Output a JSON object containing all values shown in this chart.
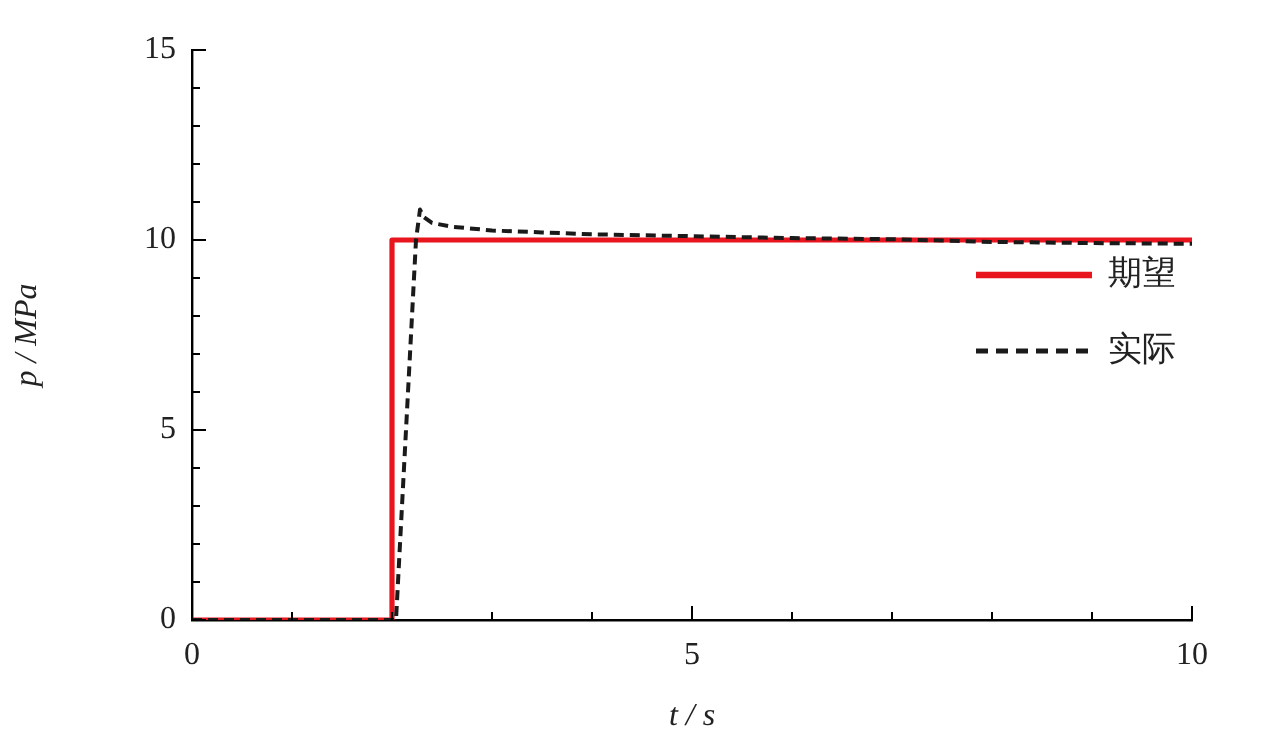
{
  "chart_data": {
    "type": "line",
    "xlabel": "t / s",
    "ylabel": "p / MPa",
    "xlim": [
      0,
      10
    ],
    "xticks": [
      0,
      {
        "value": 1,
        "label": null
      },
      {
        "value": 2,
        "label": null
      },
      {
        "value": 3,
        "label": null
      },
      {
        "value": 4,
        "label": null
      },
      5,
      {
        "value": 6,
        "label": null
      },
      {
        "value": 7,
        "label": null
      },
      {
        "value": 8,
        "label": null
      },
      {
        "value": 9,
        "label": null
      },
      10
    ],
    "ylim": [
      0,
      15
    ],
    "yticks": [
      0,
      {
        "value": 1,
        "label": null
      },
      {
        "value": 2,
        "label": null
      },
      {
        "value": 3,
        "label": null
      },
      {
        "value": 4,
        "label": null
      },
      5,
      {
        "value": 6,
        "label": null
      },
      {
        "value": 7,
        "label": null
      },
      {
        "value": 8,
        "label": null
      },
      {
        "value": 9,
        "label": null
      },
      10,
      {
        "value": 11,
        "label": null
      },
      {
        "value": 12,
        "label": null
      },
      {
        "value": 13,
        "label": null
      },
      {
        "value": 14,
        "label": null
      },
      15
    ],
    "grid": false,
    "legend": "right",
    "marker": "none",
    "series": [
      {
        "name": "期望",
        "color": "#e8141e",
        "line_style": "solid",
        "x": [
          0,
          2,
          2,
          10
        ],
        "values": [
          0,
          0,
          10,
          10
        ]
      },
      {
        "name": "实际",
        "color": "#1a1a1a",
        "line_style": "dashed",
        "x": [
          0,
          2.04,
          2.08,
          2.12,
          2.16,
          2.2,
          2.24,
          2.28,
          2.32,
          2.4,
          2.6,
          3,
          3.5,
          4,
          5,
          6,
          7,
          8,
          9,
          10
        ],
        "values": [
          0,
          0,
          2,
          4,
          6,
          8,
          10,
          10.8,
          10.6,
          10.45,
          10.35,
          10.25,
          10.2,
          10.15,
          10.1,
          10.05,
          10.02,
          9.95,
          9.92,
          9.9
        ]
      }
    ]
  }
}
